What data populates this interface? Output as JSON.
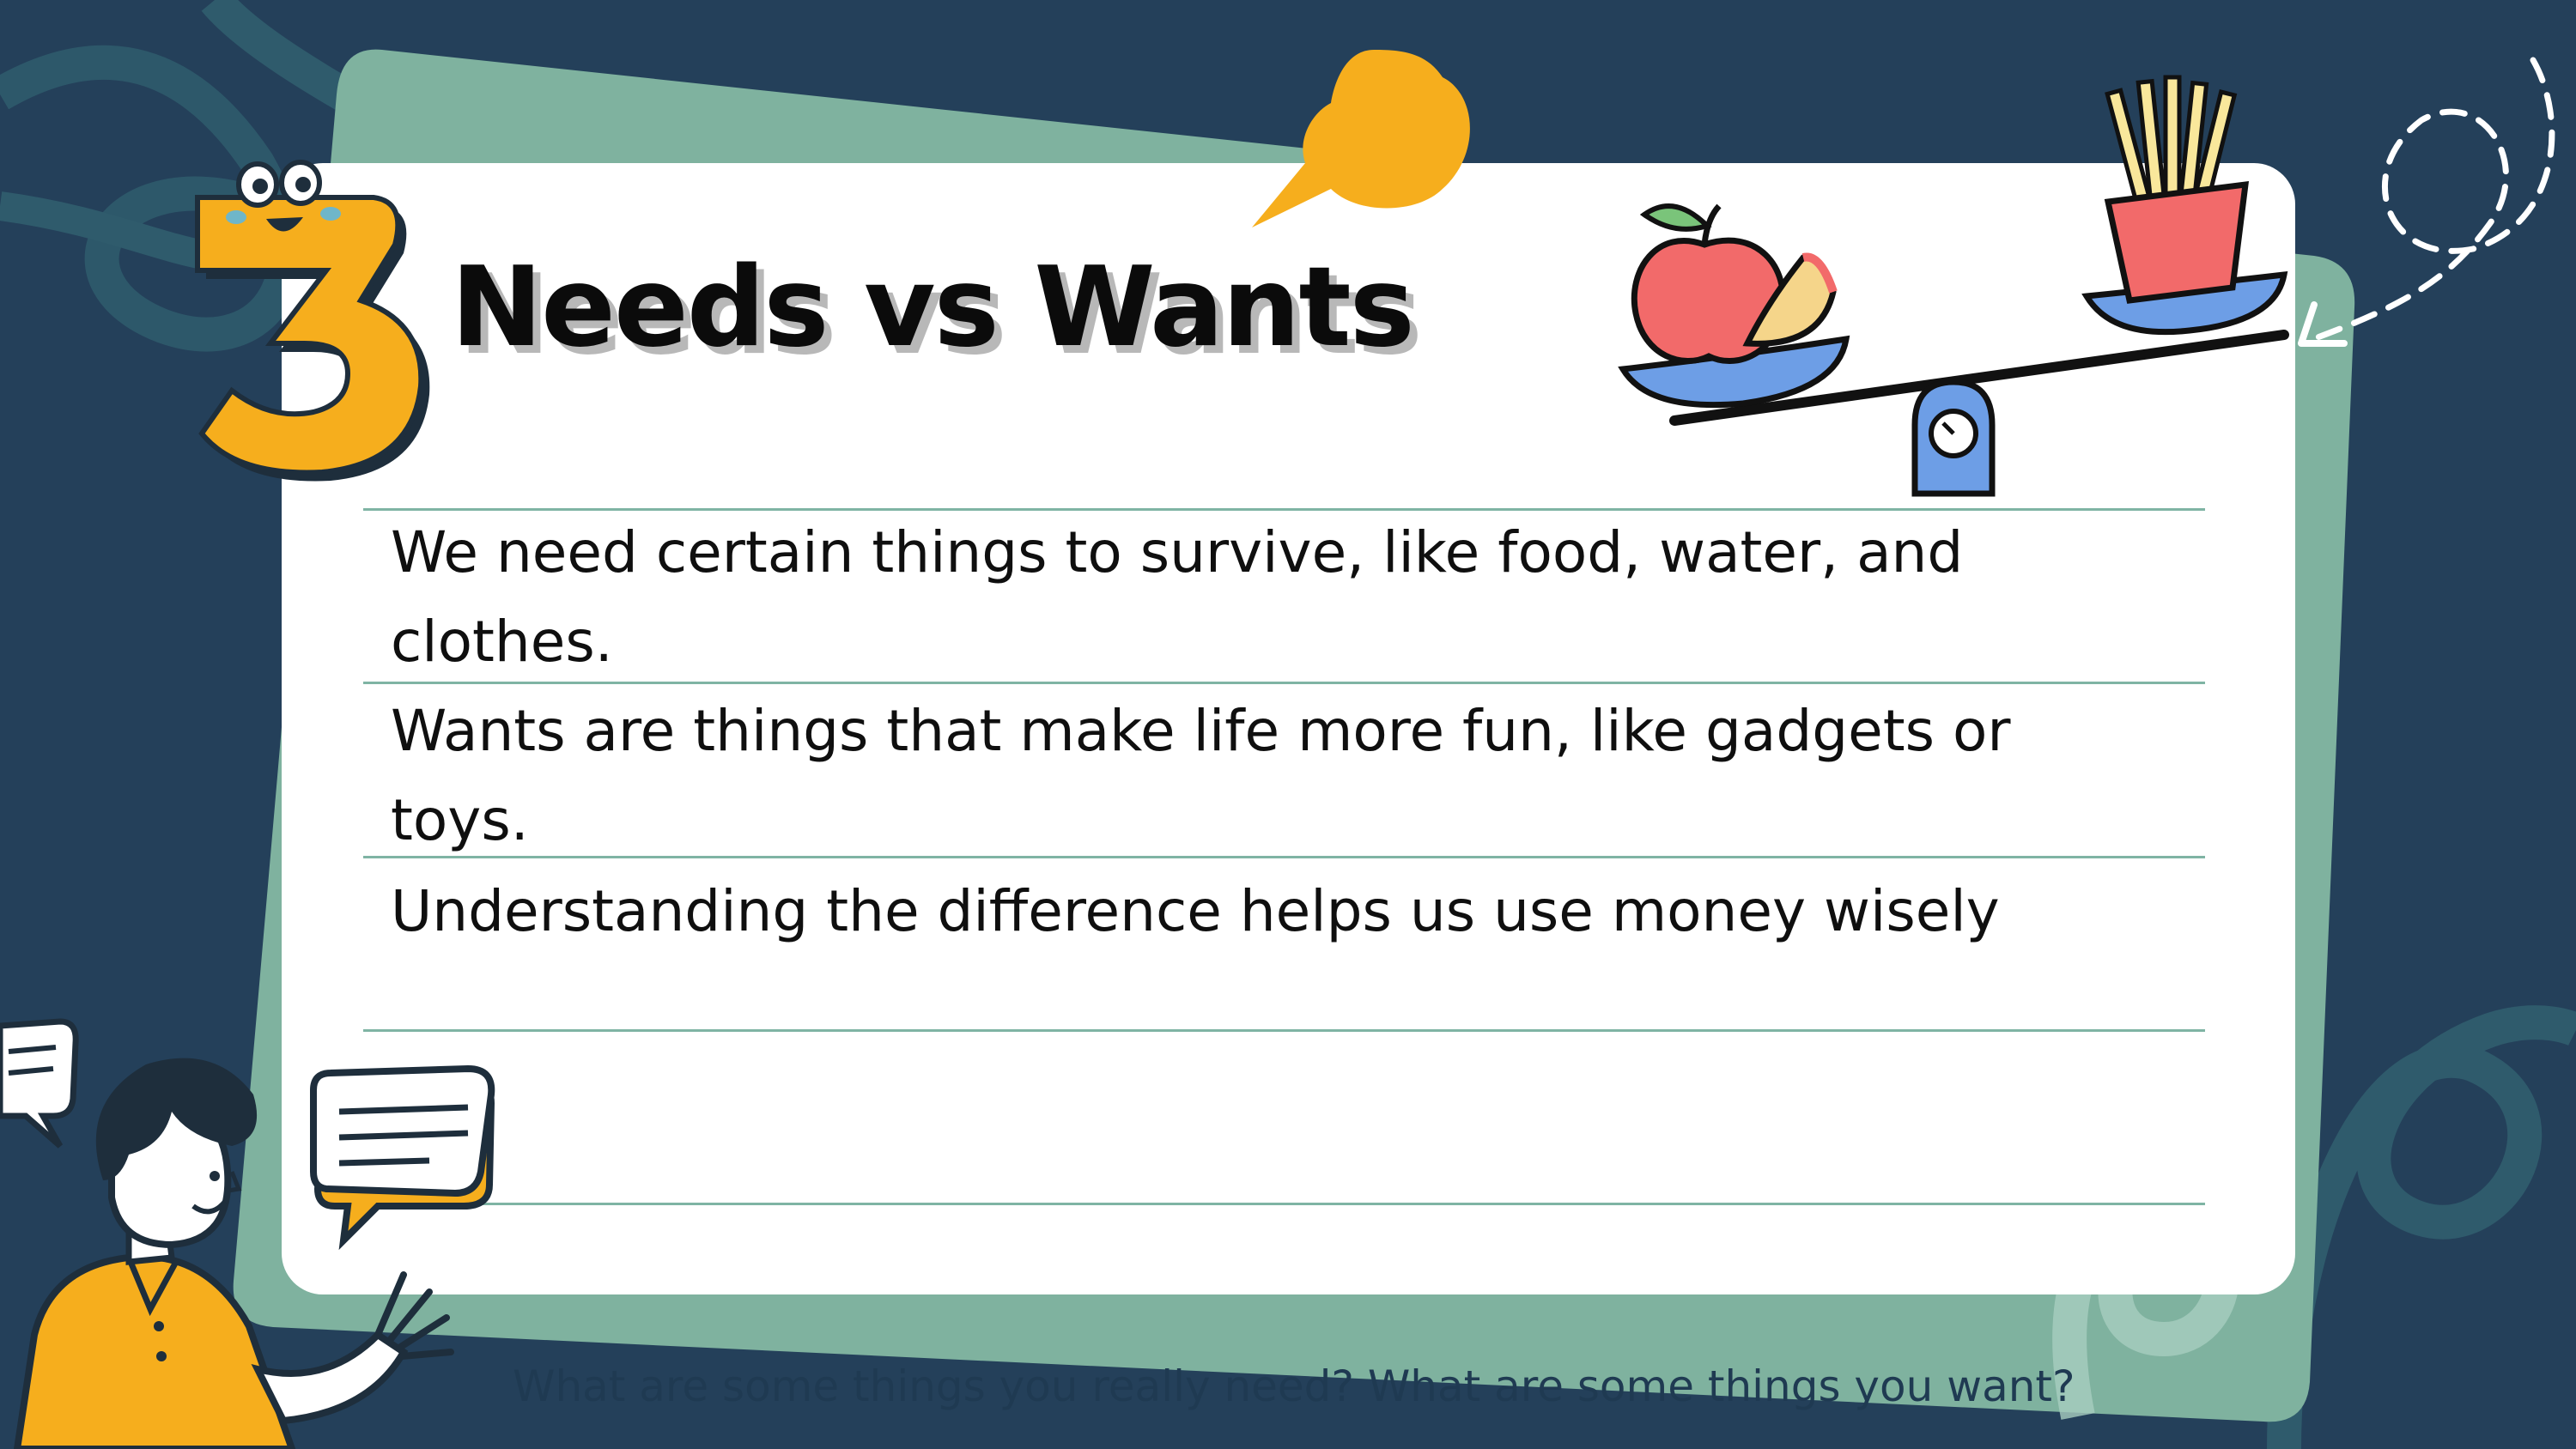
{
  "slide": {
    "number": "3",
    "title": "Needs vs Wants",
    "lines": [
      "We need certain things to survive, like food, water, and clothes.",
      "Wants are things that make life more fun, like gadgets or toys.",
      "Understanding the difference helps us use money wisely"
    ],
    "prompt": "What are some things you really need? What are some things you want?"
  },
  "colors": {
    "background": "#24405a",
    "card": "#ffffff",
    "teal_panel": "#7fb29f",
    "accent_orange": "#f6ae1d",
    "rule": "#7fb4a4"
  },
  "icons": [
    "number-three-mascot",
    "speech-bubble",
    "balance-scale",
    "apple",
    "french-fries",
    "person-waving",
    "chat-bubble"
  ]
}
